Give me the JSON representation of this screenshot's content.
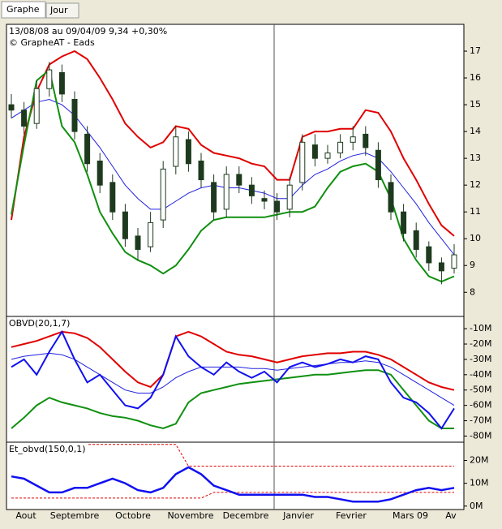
{
  "tabs": [
    "Graphe",
    "Jour"
  ],
  "chart_data": [
    {
      "type": "candlestick",
      "title": "13/08/08 au 09/04/09  9,34  +0,30%",
      "subtitle": "© GrapheAT - Eads",
      "open": [
        15.0,
        14.8,
        14.3,
        15.6,
        16.2,
        15.2,
        13.9,
        12.9,
        12.1,
        11.0,
        10.1,
        9.7,
        10.7,
        12.7,
        13.7,
        12.9,
        12.1,
        11.1,
        12.4,
        12.0,
        11.5,
        11.4,
        11.1,
        12.1,
        13.5,
        13.0,
        13.2,
        13.6,
        13.9,
        13.3,
        12.1,
        11.0,
        10.3,
        9.7,
        9.1,
        8.9
      ],
      "high": [
        15.4,
        15.1,
        15.9,
        16.6,
        16.5,
        15.5,
        14.2,
        13.2,
        12.4,
        11.3,
        10.4,
        11.0,
        12.9,
        14.2,
        14.0,
        13.2,
        12.4,
        12.7,
        12.7,
        12.3,
        11.8,
        11.7,
        12.3,
        13.9,
        13.9,
        13.5,
        13.9,
        14.2,
        14.2,
        13.6,
        12.4,
        11.3,
        10.6,
        9.9,
        9.3,
        9.8
      ],
      "low": [
        14.5,
        13.9,
        14.1,
        15.3,
        15.1,
        13.7,
        12.5,
        11.7,
        10.7,
        9.7,
        9.2,
        9.5,
        10.4,
        12.4,
        12.5,
        11.9,
        10.7,
        10.8,
        11.7,
        11.3,
        11.1,
        10.7,
        10.8,
        11.8,
        12.7,
        12.8,
        13.0,
        13.3,
        13.1,
        11.9,
        10.7,
        9.9,
        9.3,
        8.8,
        8.3,
        8.7
      ],
      "close": [
        14.8,
        14.2,
        15.6,
        16.3,
        15.4,
        14.0,
        12.8,
        12.0,
        11.0,
        10.0,
        9.6,
        10.6,
        12.6,
        13.8,
        12.8,
        12.2,
        11.0,
        12.4,
        12.0,
        11.6,
        11.4,
        11.0,
        12.0,
        13.6,
        13.0,
        13.2,
        13.6,
        13.8,
        13.4,
        12.2,
        11.0,
        10.2,
        9.6,
        9.1,
        8.8,
        9.4
      ],
      "candle_color": "#1e3a1e",
      "series": [
        {
          "color": "#e00000",
          "width": 2,
          "values": [
            10.7,
            13.8,
            15.5,
            16.5,
            16.8,
            17.0,
            16.7,
            16.0,
            15.2,
            14.3,
            13.8,
            13.4,
            13.6,
            14.2,
            14.1,
            13.5,
            13.2,
            13.1,
            13.0,
            12.8,
            12.7,
            12.2,
            12.2,
            13.8,
            14.0,
            14.0,
            14.1,
            14.1,
            14.8,
            14.7,
            14.0,
            13.0,
            12.2,
            11.3,
            10.5,
            10.1
          ]
        },
        {
          "color": "#2020e0",
          "width": 1,
          "values": [
            14.5,
            14.8,
            15.1,
            15.2,
            15.0,
            14.6,
            14.0,
            13.4,
            12.7,
            12.0,
            11.5,
            11.1,
            11.1,
            11.4,
            11.7,
            11.9,
            12.0,
            11.9,
            11.9,
            11.8,
            11.7,
            11.5,
            11.5,
            12.0,
            12.4,
            12.6,
            12.9,
            13.1,
            13.2,
            13.0,
            12.5,
            11.9,
            11.3,
            10.6,
            10.0,
            9.4
          ]
        },
        {
          "color": "#109010",
          "width": 2,
          "values": [
            10.9,
            13.5,
            15.9,
            16.3,
            14.2,
            13.6,
            12.4,
            11.0,
            10.2,
            9.5,
            9.2,
            9.0,
            8.7,
            9.0,
            9.6,
            10.3,
            10.7,
            10.8,
            10.8,
            10.8,
            10.8,
            10.9,
            11.0,
            11.0,
            11.2,
            11.9,
            12.5,
            12.7,
            12.8,
            12.5,
            11.5,
            10.0,
            9.2,
            8.6,
            8.4,
            8.6
          ]
        }
      ],
      "ylim": [
        7.1,
        18.0
      ],
      "yticks": [
        8,
        9,
        10,
        11,
        12,
        13,
        14,
        15,
        16,
        17
      ]
    },
    {
      "type": "line",
      "title": "OBVD(20,1,7)",
      "series": [
        {
          "color": "#e00000",
          "width": 2,
          "values": [
            -22,
            -20,
            -18,
            -15,
            -12,
            -13,
            -16,
            -22,
            -30,
            -38,
            -45,
            -48,
            -40,
            -15,
            -12,
            -15,
            -20,
            -25,
            -27,
            -28,
            -30,
            -32,
            -30,
            -28,
            -27,
            -26,
            -26,
            -25,
            -25,
            -27,
            -30,
            -35,
            -40,
            -45,
            -48,
            -50
          ]
        },
        {
          "color": "#2020e0",
          "width": 1,
          "values": [
            -30,
            -28,
            -27,
            -26,
            -27,
            -30,
            -35,
            -40,
            -45,
            -50,
            -52,
            -52,
            -48,
            -42,
            -38,
            -35,
            -35,
            -35,
            -35,
            -36,
            -36,
            -37,
            -36,
            -35,
            -34,
            -33,
            -32,
            -32,
            -31,
            -32,
            -35,
            -40,
            -45,
            -50,
            -55,
            -60
          ]
        },
        {
          "color": "#109010",
          "width": 2,
          "values": [
            -75,
            -68,
            -60,
            -55,
            -58,
            -60,
            -62,
            -65,
            -67,
            -68,
            -70,
            -73,
            -75,
            -72,
            -58,
            -52,
            -50,
            -48,
            -46,
            -45,
            -44,
            -43,
            -42,
            -41,
            -40,
            -40,
            -39,
            -38,
            -37,
            -37,
            -40,
            -50,
            -60,
            -70,
            -75,
            -75
          ]
        },
        {
          "color": "#1010f0",
          "width": 2,
          "values": [
            -35,
            -30,
            -40,
            -25,
            -12,
            -30,
            -45,
            -40,
            -50,
            -60,
            -62,
            -55,
            -40,
            -15,
            -28,
            -35,
            -40,
            -32,
            -38,
            -42,
            -38,
            -45,
            -35,
            -32,
            -35,
            -33,
            -30,
            -32,
            -28,
            -30,
            -45,
            -55,
            -58,
            -65,
            -75,
            -62
          ]
        }
      ],
      "ylim": [
        -84,
        -2
      ],
      "yticks": [
        {
          "value": -10,
          "label": "-10M"
        },
        {
          "value": -20,
          "label": "-20M"
        },
        {
          "value": -30,
          "label": "-30M"
        },
        {
          "value": -40,
          "label": "-40M"
        },
        {
          "value": -50,
          "label": "-50M"
        },
        {
          "value": -60,
          "label": "-60M"
        },
        {
          "value": -70,
          "label": "-70M"
        },
        {
          "value": -80,
          "label": "-80M"
        }
      ]
    },
    {
      "type": "line",
      "title": "Et_obvd(150,0,1)",
      "series": [
        {
          "color": "#e00000",
          "width": 1,
          "dash": true,
          "values": [
            27,
            27,
            27,
            27,
            27,
            27,
            27,
            27,
            27,
            27,
            27,
            27,
            27,
            27,
            17.5,
            17.5,
            17.5,
            17.5,
            17.5,
            17.5,
            17.5,
            17.5,
            17.5,
            17.5,
            17.5,
            17.5,
            17.5,
            17.5,
            17.5,
            17.5,
            17.5,
            17.5,
            17.5,
            17.5,
            17.5,
            17.5
          ]
        },
        {
          "color": "#e00000",
          "width": 1,
          "dash": true,
          "values": [
            3.5,
            3.5,
            3.5,
            3.5,
            3.5,
            3.5,
            3.5,
            3.5,
            3.5,
            3.5,
            3.5,
            3.5,
            3.5,
            3.5,
            3.5,
            3.5,
            6,
            6,
            6,
            6,
            6,
            6,
            6,
            6,
            6,
            6,
            6,
            6,
            6,
            6,
            6,
            6,
            6,
            6,
            6,
            6
          ]
        },
        {
          "color": "#1010f0",
          "width": 2.5,
          "values": [
            13,
            12,
            9,
            6,
            6,
            8,
            8,
            10,
            12,
            10,
            7,
            6,
            8,
            14,
            17,
            14,
            9,
            7,
            5,
            5,
            5,
            5,
            5,
            5,
            4,
            4,
            3,
            2,
            2,
            2,
            3,
            5,
            7,
            8,
            7,
            8
          ]
        }
      ],
      "ylim": [
        -1.5,
        28
      ],
      "yticks": [
        {
          "value": 0,
          "label": "0M"
        },
        {
          "value": 10,
          "label": "10M"
        },
        {
          "value": 20,
          "label": "20M"
        }
      ],
      "x_labels": [
        "Aout",
        "Septembre",
        "Octobre",
        "Novembre",
        "Decembre",
        "Janvier",
        "Fevrier",
        "Mars 09",
        "Av"
      ]
    }
  ]
}
